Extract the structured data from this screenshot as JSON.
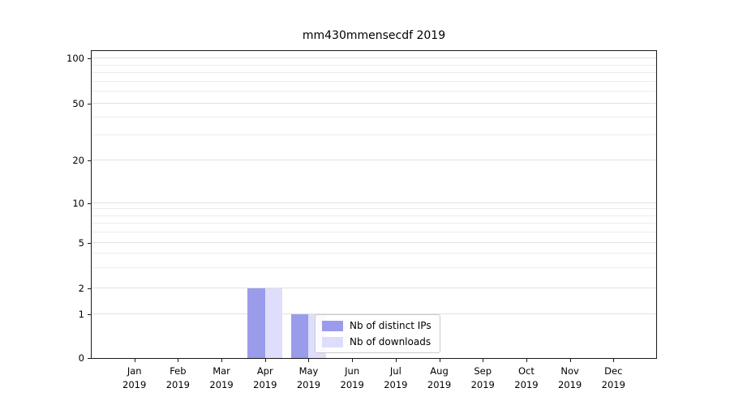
{
  "title": "mm430mmensecdf 2019",
  "legend": {
    "items": [
      {
        "label": "Nb of distinct IPs",
        "color": "#9b9bec"
      },
      {
        "label": "Nb of downloads",
        "color": "#dedefc"
      }
    ]
  },
  "chart_data": {
    "type": "bar",
    "title": "mm430mmensecdf 2019",
    "xlabel": "",
    "ylabel": "",
    "categories": [
      "Jan 2019",
      "Feb 2019",
      "Mar 2019",
      "Apr 2019",
      "May 2019",
      "Jun 2019",
      "Jul 2019",
      "Aug 2019",
      "Sep 2019",
      "Oct 2019",
      "Nov 2019",
      "Dec 2019"
    ],
    "series": [
      {
        "name": "Nb of distinct IPs",
        "color": "#9b9bec",
        "values": [
          0,
          0,
          0,
          2,
          1,
          0,
          0,
          0,
          0,
          0,
          0,
          0
        ]
      },
      {
        "name": "Nb of downloads",
        "color": "#dedefc",
        "values": [
          0,
          0,
          0,
          2,
          1,
          0,
          0,
          0,
          0,
          0,
          0,
          0
        ]
      }
    ],
    "yticks": [
      0,
      1,
      2,
      5,
      10,
      20,
      50,
      100
    ],
    "minor_yticks": [
      3,
      4,
      6,
      7,
      8,
      9,
      30,
      40,
      60,
      70,
      80,
      90
    ],
    "scale": "symlog",
    "tick_fractions": {
      "0": 0,
      "1": 0.142,
      "2": 0.228,
      "5": 0.375,
      "10": 0.504,
      "20": 0.643,
      "50": 0.829,
      "100": 0.976
    },
    "grid": "horizontal",
    "legend_position": "lower center-right inside plot"
  }
}
